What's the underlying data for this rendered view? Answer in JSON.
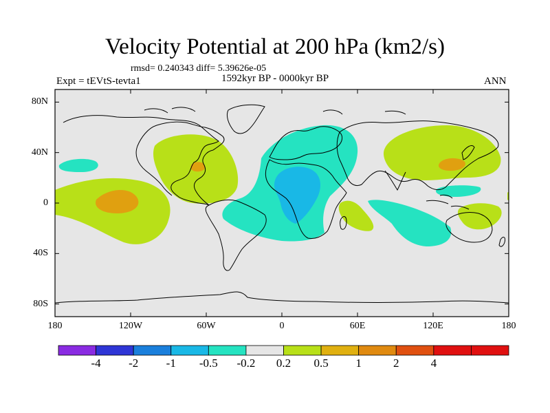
{
  "title": "Velocity Potential at 200 hPa (km2/s)",
  "stats": "rmsd= 0.240343 diff= 5.39626e-05",
  "experiment": "Expt = tEVtS-tevta1",
  "period": "1592kyr BP - 0000kyr BP",
  "season": "ANN",
  "map": {
    "projection": "cylindrical equidistant",
    "lon_range": [
      -180,
      180
    ],
    "lat_range": [
      -90,
      90
    ],
    "lat_ticks": [
      {
        "value": 80,
        "label": "80N"
      },
      {
        "value": 40,
        "label": "40N"
      },
      {
        "value": 0,
        "label": "0"
      },
      {
        "value": -40,
        "label": "40S"
      },
      {
        "value": -80,
        "label": "80S"
      }
    ],
    "lon_ticks": [
      {
        "value": -180,
        "label": "180"
      },
      {
        "value": -120,
        "label": "120W"
      },
      {
        "value": -60,
        "label": "60W"
      },
      {
        "value": 0,
        "label": "0"
      },
      {
        "value": 60,
        "label": "60E"
      },
      {
        "value": 120,
        "label": "120E"
      },
      {
        "value": 180,
        "label": "180"
      }
    ]
  },
  "colorbar": {
    "colors": [
      "#8a2be2",
      "#2e35d6",
      "#1a7fdc",
      "#19b8e6",
      "#25e3c1",
      "#e6e6e6",
      "#b8e018",
      "#e0b010",
      "#e08a10",
      "#e05010",
      "#e01010",
      "#e01010"
    ],
    "labels": [
      "-4",
      "-2",
      "-1",
      "-0.5",
      "-0.2",
      "0.2",
      "0.5",
      "1",
      "2",
      "4"
    ]
  },
  "colors": {
    "background": "#e6e6e6",
    "lime": "#b8e018",
    "teal": "#25e3c1",
    "cyan": "#19b8e6",
    "orange": "#e0a010",
    "outline": "#000000"
  }
}
